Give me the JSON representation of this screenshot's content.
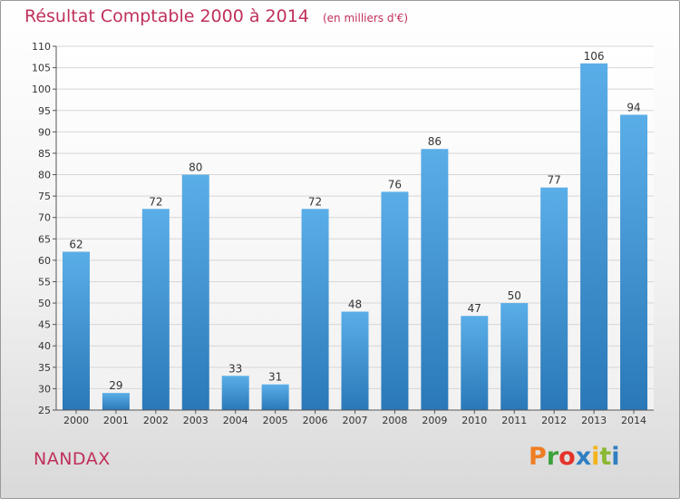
{
  "page": {
    "place": "NANDAX",
    "logo_text": "Proxiti",
    "logo_colors": [
      "#ef7d23",
      "#3fa23c",
      "#e5332a",
      "#2f7fc1",
      "#f3b41b",
      "#8ab832",
      "#2f7fc1"
    ]
  },
  "chart_data": {
    "type": "bar",
    "title": "Résultat Comptable 2000 à 2014",
    "subtitle": "(en milliers d'€)",
    "xlabel": "",
    "ylabel": "",
    "categories": [
      "2000",
      "2001",
      "2002",
      "2003",
      "2004",
      "2005",
      "2006",
      "2007",
      "2008",
      "2009",
      "2010",
      "2011",
      "2012",
      "2013",
      "2014"
    ],
    "values": [
      62,
      29,
      72,
      80,
      33,
      31,
      72,
      48,
      76,
      86,
      47,
      50,
      77,
      106,
      94
    ],
    "ylim": [
      25,
      110
    ],
    "yticks": [
      25,
      30,
      35,
      40,
      45,
      50,
      55,
      60,
      65,
      70,
      75,
      80,
      85,
      90,
      95,
      100,
      105,
      110
    ],
    "grid": true,
    "bar_color": "#3d92d3",
    "legend": "none"
  }
}
